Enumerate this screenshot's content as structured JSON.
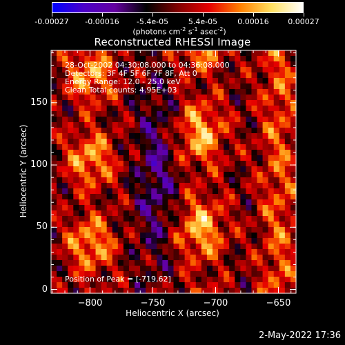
{
  "colorbar": {
    "ticks": [
      "-0.00027",
      "-0.00016",
      "-5.4e-05",
      "5.4e-05",
      "0.00016",
      "0.00027"
    ],
    "units_main": "(photons cm",
    "units_exp1": "-2",
    "units_mid": " s",
    "units_exp2": "-1",
    "units_mid2": " asec",
    "units_exp3": "-2",
    "units_end": ")",
    "colors": [
      "#0000ff",
      "#4b00c8",
      "#6400a0",
      "#000000",
      "#800000",
      "#e60000",
      "#ff8000",
      "#ffe060",
      "#ffffff"
    ]
  },
  "title": "Reconstructed RHESSI Image",
  "info": {
    "time": "28-Oct-2002 04:30:08.000 to 04:36:08.000",
    "detectors": "Detectors: 3F 4F 5F 6F 7F 8F, Att 0",
    "energy": "Energy Range: 12.0 - 25.0 keV",
    "method": "Clean     Total counts: 4.95E+03",
    "peak": "Position of Peak = [-719,62]"
  },
  "chart_data": {
    "type": "heatmap",
    "title": "Reconstructed RHESSI Image",
    "xlabel": "Heliocentric X (arcsec)",
    "ylabel": "Heliocentric Y (arcsec)",
    "xlim": [
      -831,
      -636
    ],
    "ylim": [
      -3,
      192
    ],
    "xticks": [
      -800,
      -750,
      -700,
      -650
    ],
    "yticks": [
      0,
      50,
      100,
      150
    ],
    "xtick_labels": [
      "−800",
      "−750",
      "−700",
      "−650"
    ],
    "ytick_labels": [
      "0",
      "50",
      "100",
      "150"
    ],
    "zlim": [
      -0.00027,
      0.00027
    ],
    "peak": [
      -719,
      62
    ]
  },
  "footer": "2-May-2022 17:36"
}
